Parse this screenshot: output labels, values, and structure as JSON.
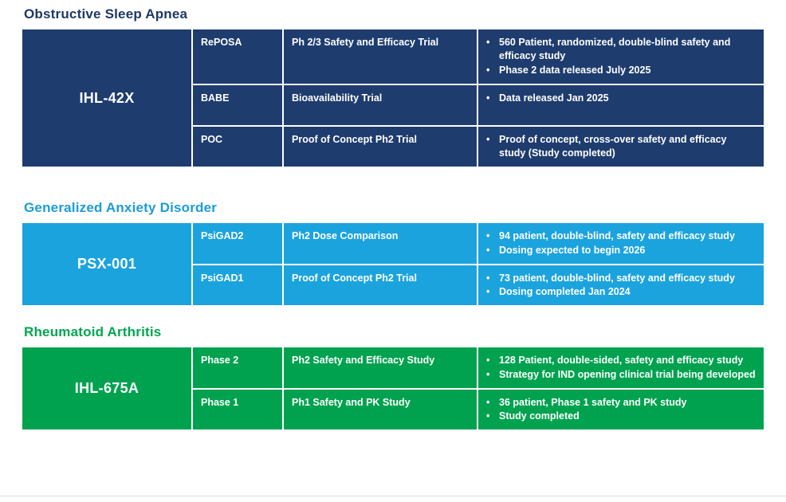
{
  "glyphs": {
    "bullet": "•"
  },
  "colors": {
    "navy": "#1e3c6e",
    "navyHeading": "#1f3864",
    "blue": "#1ba3de",
    "blueHeading": "#1b9cd8",
    "green": "#00a24f",
    "greenHeading": "#00a651"
  },
  "sections": [
    {
      "heading": "Obstructive Sleep Apnea",
      "product": "IHL-42X",
      "rows": [
        {
          "code": "RePOSA",
          "trial": "Ph 2/3 Safety and Efficacy Trial",
          "bullets": [
            "560 Patient, randomized, double-blind safety and efficacy study",
            "Phase 2 data released July 2025"
          ]
        },
        {
          "code": "BABE",
          "trial": "Bioavailability Trial",
          "bullets": [
            "Data released Jan 2025"
          ]
        },
        {
          "code": "POC",
          "trial": "Proof of Concept Ph2 Trial",
          "bullets": [
            "Proof of concept, cross-over safety and efficacy study (Study completed)"
          ]
        }
      ]
    },
    {
      "heading": "Generalized Anxiety Disorder",
      "product": "PSX-001",
      "rows": [
        {
          "code": "PsiGAD2",
          "trial": "Ph2 Dose Comparison",
          "bullets": [
            "94 patient, double-blind, safety and efficacy study",
            "Dosing expected to begin 2026"
          ]
        },
        {
          "code": "PsiGAD1",
          "trial": "Proof of Concept Ph2 Trial",
          "bullets": [
            "73 patient, double-blind, safety and efficacy study",
            "Dosing completed Jan 2024"
          ]
        }
      ]
    },
    {
      "heading": "Rheumatoid Arthritis",
      "product": "IHL-675A",
      "rows": [
        {
          "code": "Phase 2",
          "trial": "Ph2 Safety and Efficacy Study",
          "bullets": [
            "128 Patient, double-sided, safety and efficacy study",
            "Strategy for IND opening clinical trial being developed"
          ]
        },
        {
          "code": "Phase 1",
          "trial": "Ph1 Safety and PK Study",
          "bullets": [
            "36 patient, Phase 1 safety and PK study",
            "Study completed"
          ]
        }
      ]
    }
  ]
}
